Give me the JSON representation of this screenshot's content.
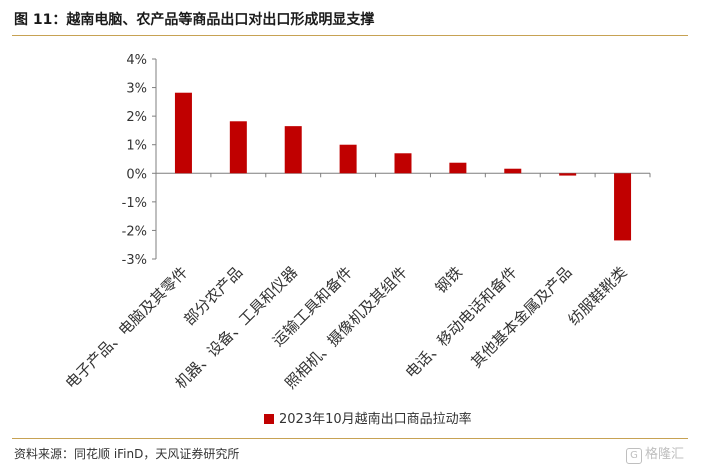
{
  "header": {
    "title": "图 11：越南电脑、农产品等商品出口对出口形成明显支撑"
  },
  "footer": {
    "source": "资料来源：同花顺 iFinD，天风证券研究所",
    "watermark": "格隆汇",
    "watermark_icon": "G"
  },
  "chart_data": {
    "type": "bar",
    "categories": [
      "电子产品、电脑及其零件",
      "部分农产品",
      "机器、设备、工具和仪器",
      "运输工具和备件",
      "照相机、摄像机及其组件",
      "钢铁",
      "电话、移动电话和备件",
      "其他基本金属及产品",
      "纺服鞋靴类"
    ],
    "series": [
      {
        "name": "2023年10月越南出口商品拉动率",
        "values": [
          2.82,
          1.82,
          1.65,
          1.0,
          0.7,
          0.37,
          0.16,
          -0.08,
          -2.35
        ],
        "color": "#c00000"
      }
    ],
    "y_ticks": [
      "4%",
      "3%",
      "2%",
      "1%",
      "0%",
      "-1%",
      "-2%",
      "-3%"
    ],
    "ylim": [
      -3,
      4
    ],
    "grid": false,
    "legend_position": "bottom"
  }
}
